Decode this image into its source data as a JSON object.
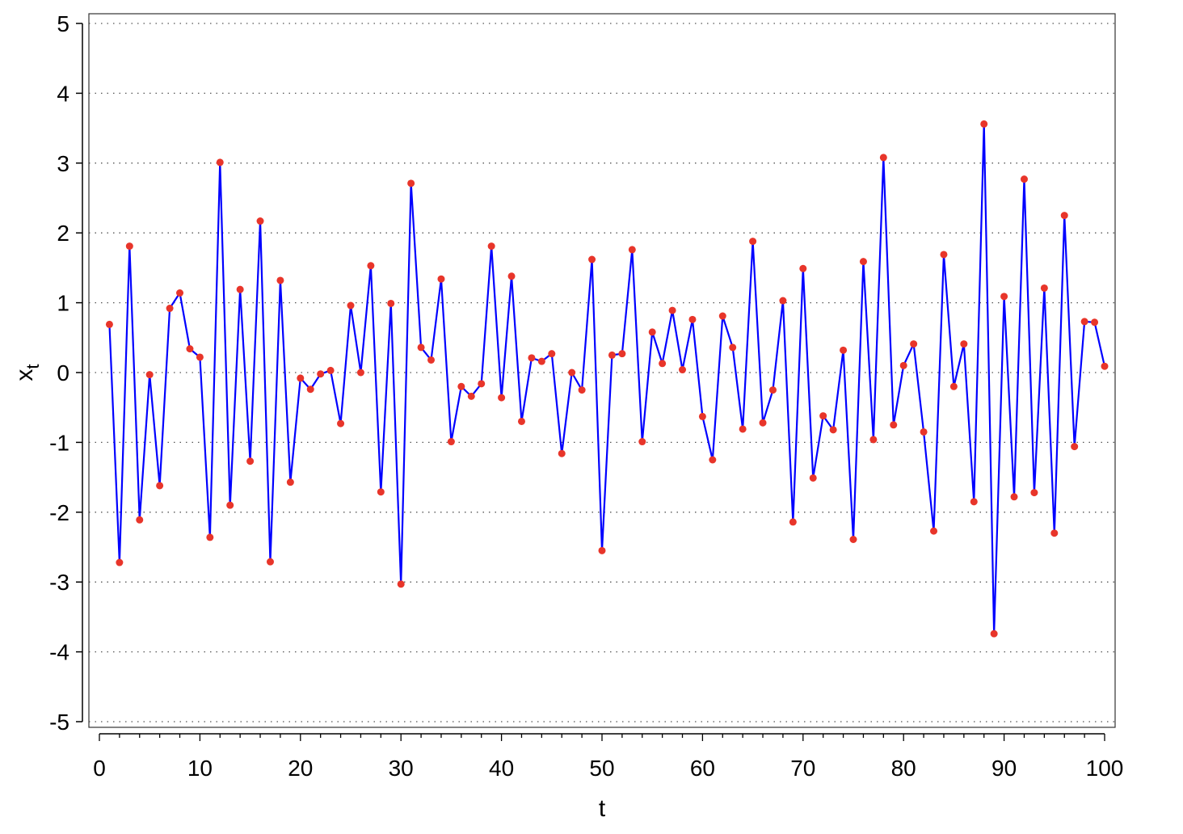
{
  "chart_data": {
    "type": "line",
    "title": "",
    "xlabel": "t",
    "ylabel_main": "x",
    "ylabel_sub": "t",
    "xlim": [
      0,
      100
    ],
    "ylim": [
      -5,
      5
    ],
    "x_ticks": [
      0,
      10,
      20,
      30,
      40,
      50,
      60,
      70,
      80,
      90,
      100
    ],
    "y_ticks": [
      -5,
      -4,
      -3,
      -2,
      -1,
      0,
      1,
      2,
      3,
      4,
      5
    ],
    "grid": "horizontal-dotted",
    "line_color": "#0000ff",
    "point_color": "#e8352a",
    "series": [
      {
        "x": [
          1,
          2,
          3,
          4,
          5,
          6,
          7,
          8,
          9,
          10,
          11,
          12,
          13,
          14,
          15,
          16,
          17,
          18,
          19,
          20,
          21,
          22,
          23,
          24,
          25,
          26,
          27,
          28,
          29,
          30,
          31,
          32,
          33,
          34,
          35,
          36,
          37,
          38,
          39,
          40,
          41,
          42,
          43,
          44,
          45,
          46,
          47,
          48,
          49,
          50,
          51,
          52,
          53,
          54,
          55,
          56,
          57,
          58,
          59,
          60,
          61,
          62,
          63,
          64,
          65,
          66,
          67,
          68,
          69,
          70,
          71,
          72,
          73,
          74,
          75,
          76,
          77,
          78,
          79,
          80,
          81,
          82,
          83,
          84,
          85,
          86,
          87,
          88,
          89,
          90,
          91,
          92,
          93,
          94,
          95,
          96,
          97,
          98,
          99,
          100
        ],
        "values": [
          0.69,
          -2.72,
          1.81,
          -2.11,
          -0.03,
          -1.62,
          0.92,
          1.14,
          0.34,
          0.22,
          -2.36,
          3.01,
          -1.9,
          1.19,
          -1.27,
          2.17,
          -2.71,
          1.32,
          -1.57,
          -0.08,
          -0.24,
          -0.02,
          0.03,
          -0.73,
          0.96,
          0.0,
          1.53,
          -1.71,
          0.99,
          -3.03,
          2.71,
          0.36,
          0.18,
          1.34,
          -0.99,
          -0.2,
          -0.34,
          -0.16,
          1.81,
          -0.36,
          1.38,
          -0.7,
          0.21,
          0.16,
          0.27,
          -1.16,
          0.0,
          -0.25,
          1.62,
          -2.55,
          0.25,
          0.27,
          1.76,
          -0.99,
          0.58,
          0.13,
          0.89,
          0.04,
          0.76,
          -0.63,
          -1.25,
          0.81,
          0.36,
          -0.81,
          1.88,
          -0.72,
          -0.25,
          1.03,
          -2.14,
          1.49,
          -1.51,
          -0.62,
          -0.82,
          0.32,
          -2.39,
          1.59,
          -0.96,
          3.08,
          -0.75,
          0.1,
          0.41,
          -0.85,
          -2.27,
          1.69,
          -0.2,
          0.41,
          -1.85,
          3.56,
          -3.74,
          1.09,
          -1.78,
          2.77,
          -1.72,
          1.21,
          -2.3,
          2.25,
          -1.06,
          0.73,
          0.72,
          0.09
        ]
      }
    ]
  }
}
